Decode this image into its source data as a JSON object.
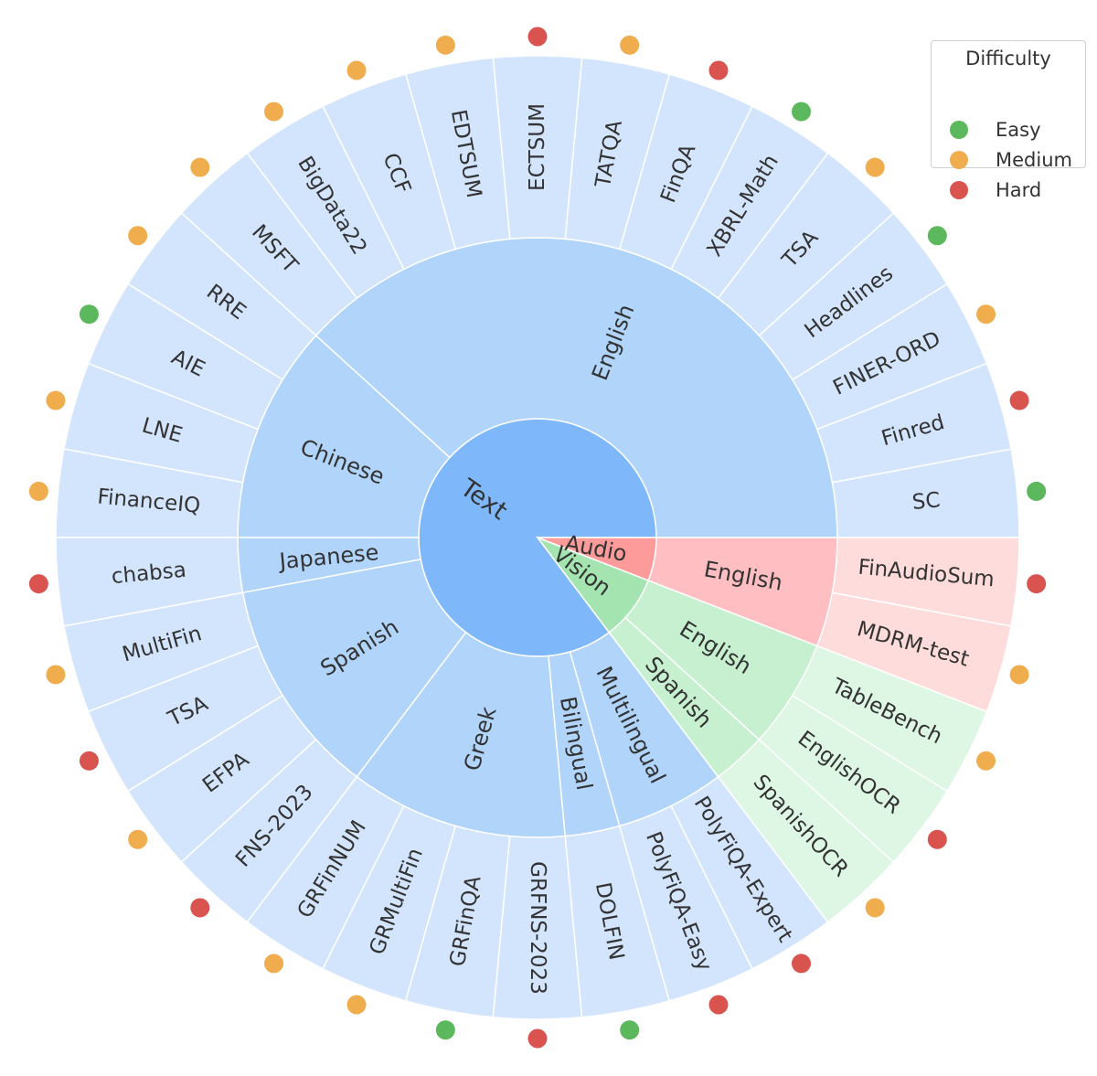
{
  "chart_data": {
    "type": "sunburst",
    "legend": {
      "title": "Difficulty",
      "placement": "top-right",
      "entries": [
        {
          "name": "Easy",
          "color": "#5cb85c"
        },
        {
          "name": "Medium",
          "color": "#f0ad4e"
        },
        {
          "name": "Hard",
          "color": "#d9534f"
        }
      ]
    },
    "root": [
      {
        "name": "Text",
        "color": "#7fb8fa",
        "children": [
          {
            "name": "English",
            "color": "#b1d4fb",
            "children": [
              {
                "name": "SC",
                "difficulty": "Easy"
              },
              {
                "name": "Finred",
                "difficulty": "Hard"
              },
              {
                "name": "FINER-ORD",
                "difficulty": "Medium"
              },
              {
                "name": "Headlines",
                "difficulty": "Easy"
              },
              {
                "name": "TSA",
                "difficulty": "Medium"
              },
              {
                "name": "XBRL-Math",
                "difficulty": "Easy"
              },
              {
                "name": "FinQA",
                "difficulty": "Hard"
              },
              {
                "name": "TATQA",
                "difficulty": "Medium"
              },
              {
                "name": "ECTSUM",
                "difficulty": "Hard"
              },
              {
                "name": "EDTSUM",
                "difficulty": "Medium"
              },
              {
                "name": "CCF",
                "difficulty": "Medium"
              },
              {
                "name": "BigData22",
                "difficulty": "Medium"
              },
              {
                "name": "MSFT",
                "difficulty": "Medium"
              }
            ]
          },
          {
            "name": "Chinese",
            "color": "#b1d4fb",
            "children": [
              {
                "name": "RRE",
                "difficulty": "Medium"
              },
              {
                "name": "AIE",
                "difficulty": "Easy"
              },
              {
                "name": "LNE",
                "difficulty": "Medium"
              },
              {
                "name": "FinanceIQ",
                "difficulty": "Medium"
              }
            ]
          },
          {
            "name": "Japanese",
            "color": "#b1d4fb",
            "children": [
              {
                "name": "chabsa",
                "difficulty": "Hard"
              }
            ]
          },
          {
            "name": "Spanish",
            "color": "#b1d4fb",
            "children": [
              {
                "name": "MultiFin",
                "difficulty": "Medium"
              },
              {
                "name": "TSA",
                "difficulty": "Hard"
              },
              {
                "name": "EFPA",
                "difficulty": "Medium"
              },
              {
                "name": "FNS-2023",
                "difficulty": "Hard"
              }
            ]
          },
          {
            "name": "Greek",
            "color": "#b1d4fb",
            "children": [
              {
                "name": "GRFinNUM",
                "difficulty": "Medium"
              },
              {
                "name": "GRMultiFin",
                "difficulty": "Medium"
              },
              {
                "name": "GRFinQA",
                "difficulty": "Easy"
              },
              {
                "name": "GRFNS-2023",
                "difficulty": "Hard"
              }
            ]
          },
          {
            "name": "Bilingual",
            "color": "#b1d4fb",
            "children": [
              {
                "name": "DOLFIN",
                "difficulty": "Easy"
              }
            ]
          },
          {
            "name": "Multilingual",
            "color": "#b1d4fb",
            "children": [
              {
                "name": "PolyFiQA-Easy",
                "difficulty": "Hard"
              },
              {
                "name": "PolyFiQA-Expert",
                "difficulty": "Hard"
              }
            ]
          }
        ]
      },
      {
        "name": "Vision",
        "color": "#a3e4b1",
        "children": [
          {
            "name": "Spanish",
            "color": "#c6f0cf",
            "children": [
              {
                "name": "SpanishOCR",
                "difficulty": "Medium"
              }
            ]
          },
          {
            "name": "English",
            "color": "#c6f0cf",
            "children": [
              {
                "name": "EnglishOCR",
                "difficulty": "Hard"
              },
              {
                "name": "TableBench",
                "difficulty": "Medium"
              }
            ]
          }
        ]
      },
      {
        "name": "Audio",
        "color": "#fd9a9a",
        "children": [
          {
            "name": "English",
            "color": "#ffbfc2",
            "children": [
              {
                "name": "MDRM-test",
                "difficulty": "Medium"
              },
              {
                "name": "FinAudioSum",
                "difficulty": "Hard"
              }
            ]
          }
        ]
      }
    ]
  }
}
